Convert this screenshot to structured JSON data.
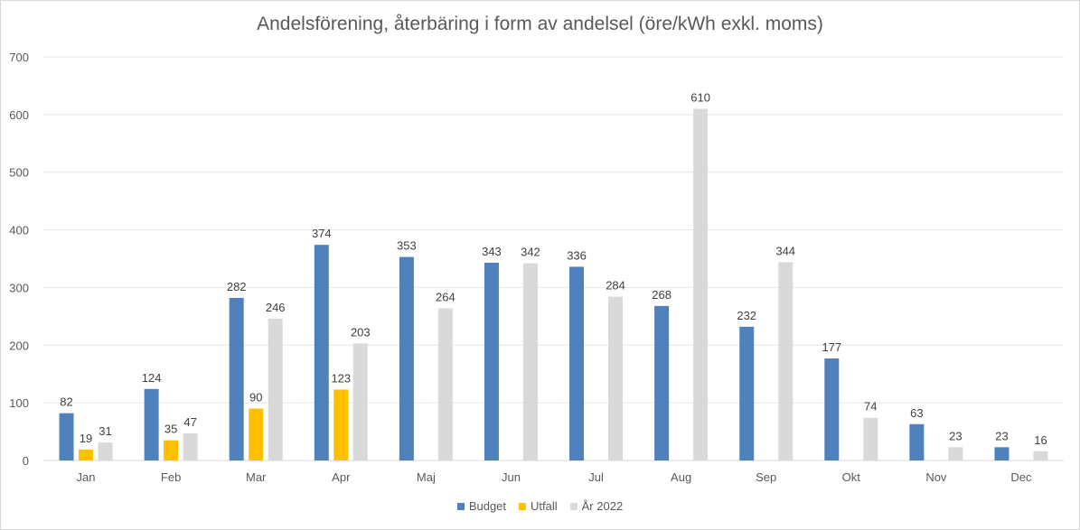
{
  "chart_data": {
    "type": "bar",
    "title": "Andelsförening, återbäring i form av andelsel (öre/kWh exkl. moms)",
    "categories": [
      "Jan",
      "Feb",
      "Mar",
      "Apr",
      "Maj",
      "Jun",
      "Jul",
      "Aug",
      "Sep",
      "Okt",
      "Nov",
      "Dec"
    ],
    "ylim": [
      0,
      700
    ],
    "yticks": [
      0,
      100,
      200,
      300,
      400,
      500,
      600,
      700
    ],
    "grid": true,
    "legend_position": "bottom",
    "series": [
      {
        "name": "Budget",
        "color": "#4f81bd",
        "values": [
          82,
          124,
          282,
          374,
          353,
          343,
          336,
          268,
          232,
          177,
          63,
          23
        ]
      },
      {
        "name": "Utfall",
        "color": "#ffc000",
        "values": [
          19,
          35,
          90,
          123,
          null,
          null,
          null,
          null,
          null,
          null,
          null,
          null
        ]
      },
      {
        "name": "År 2022",
        "color": "#d9d9d9",
        "values": [
          31,
          47,
          246,
          203,
          264,
          342,
          284,
          610,
          344,
          74,
          23,
          16
        ]
      }
    ]
  }
}
